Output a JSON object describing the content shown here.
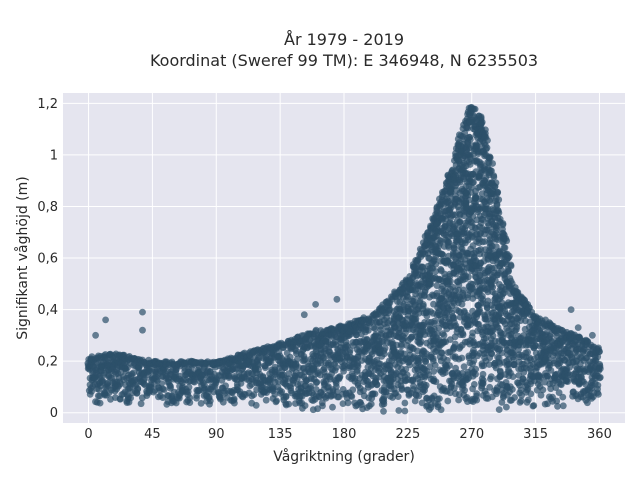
{
  "chart_data": {
    "type": "scatter",
    "title_line1": "År 1979 - 2019",
    "title_line2": "Koordinat (Sweref 99 TM): E 346948, N 6235503",
    "xlabel": "Vågriktning (grader)",
    "ylabel": "Signifikant våghöjd (m)",
    "xlim": [
      -18,
      378
    ],
    "ylim": [
      -0.04,
      1.24
    ],
    "x_ticks": [
      0,
      45,
      90,
      135,
      180,
      225,
      270,
      315,
      360
    ],
    "x_tick_labels": [
      "0",
      "45",
      "90",
      "135",
      "180",
      "225",
      "270",
      "315",
      "360"
    ],
    "y_ticks": [
      0,
      0.2,
      0.4,
      0.6,
      0.8,
      1.0,
      1.2
    ],
    "y_tick_labels": [
      "0",
      "0,2",
      "0,4",
      "0,6",
      "0,8",
      "1",
      "1,2"
    ],
    "grid": true,
    "legend": "none",
    "marker_color": "#2c5069",
    "background_color": "#e5e5ef",
    "envelope": {
      "direction_deg": [
        0,
        20,
        45,
        90,
        135,
        160,
        180,
        200,
        225,
        240,
        255,
        262,
        270,
        278,
        285,
        292,
        300,
        315,
        330,
        345,
        360
      ],
      "max_height_m": [
        0.22,
        0.23,
        0.2,
        0.2,
        0.27,
        0.32,
        0.34,
        0.38,
        0.52,
        0.72,
        0.95,
        1.1,
        1.2,
        1.15,
        0.95,
        0.75,
        0.5,
        0.38,
        0.33,
        0.3,
        0.25
      ],
      "min_height_m": [
        0.03,
        0.03,
        0.03,
        0.03,
        0.02,
        0.01,
        0.01,
        0.0,
        0.0,
        0.0,
        0.01,
        0.01,
        0.02,
        0.02,
        0.01,
        0.01,
        0.01,
        0.02,
        0.02,
        0.03,
        0.04
      ]
    },
    "outliers": {
      "x": [
        12,
        38,
        38,
        5,
        160,
        152,
        175,
        340,
        322,
        330,
        345,
        355
      ],
      "y": [
        0.36,
        0.39,
        0.32,
        0.3,
        0.42,
        0.38,
        0.44,
        0.4,
        0.36,
        0.31,
        0.33,
        0.3
      ]
    }
  }
}
